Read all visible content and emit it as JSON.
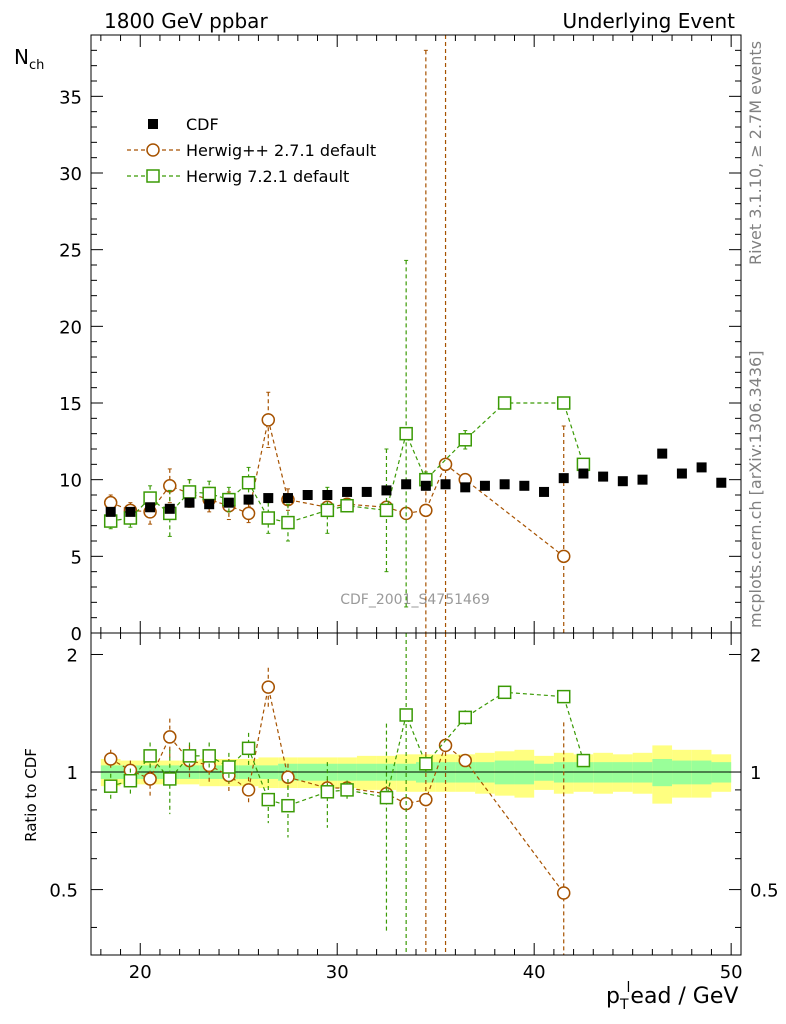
{
  "header": {
    "left_title": "1800 GeV ppbar",
    "right_title": "Underlying Event"
  },
  "side_labels": {
    "rivet": "Rivet 3.1.10, ≥ 2.7M events",
    "mcplots": "mcplots.cern.ch [arXiv:1306.3436]"
  },
  "watermark": "CDF_2001_S4751469",
  "chart_data": {
    "type": "scatter",
    "xlabel_main": "p",
    "xlabel_sub": "T",
    "xlabel_sup": "l",
    "xlabel_rest": "ead / GeV",
    "ylabel_main": "N",
    "ylabel_sub": "ch",
    "ratio_ylabel": "Ratio to CDF",
    "xlim": [
      17.5,
      50.5
    ],
    "ylim": [
      0,
      39
    ],
    "ratio_ylim": [
      0.34,
      2.27
    ],
    "x_ticks": [
      20,
      30,
      40,
      50
    ],
    "y_ticks": [
      0,
      5,
      10,
      15,
      20,
      25,
      30,
      35
    ],
    "ratio_ticks": [
      0.5,
      1,
      2
    ],
    "legend": [
      "CDF",
      "Herwig++ 2.7.1 default",
      "Herwig 7.2.1 default"
    ],
    "colors": {
      "cdf": "#000000",
      "herwigpp": "#a65200",
      "herwig7": "#3a9a05",
      "band_outer": "#ffff80",
      "band_inner": "#99ff99"
    },
    "series": [
      {
        "name": "CDF",
        "x": [
          18.5,
          19.5,
          20.5,
          21.5,
          22.5,
          23.5,
          24.5,
          25.5,
          26.5,
          27.5,
          28.5,
          29.5,
          30.5,
          31.5,
          32.5,
          33.5,
          34.5,
          35.5,
          36.5,
          37.5,
          38.5,
          39.5,
          40.5,
          41.5,
          42.5,
          43.5,
          44.5,
          45.5,
          46.5,
          47.5,
          48.5,
          49.5
        ],
        "y": [
          7.9,
          7.9,
          8.2,
          8.1,
          8.5,
          8.4,
          8.5,
          8.7,
          8.8,
          8.8,
          9.0,
          9.0,
          9.2,
          9.2,
          9.3,
          9.7,
          9.6,
          9.7,
          9.5,
          9.6,
          9.7,
          9.6,
          9.2,
          10.1,
          10.4,
          10.2,
          9.9,
          10.0,
          11.7,
          10.4,
          10.8,
          9.8
        ],
        "ratio_band_outer": [
          0.08,
          0.07,
          0.07,
          0.07,
          0.07,
          0.08,
          0.08,
          0.08,
          0.09,
          0.09,
          0.09,
          0.09,
          0.09,
          0.1,
          0.1,
          0.11,
          0.11,
          0.11,
          0.11,
          0.12,
          0.13,
          0.14,
          0.1,
          0.12,
          0.11,
          0.12,
          0.11,
          0.12,
          0.17,
          0.14,
          0.14,
          0.11
        ],
        "ratio_band_inner": [
          0.04,
          0.04,
          0.04,
          0.04,
          0.04,
          0.04,
          0.04,
          0.04,
          0.04,
          0.05,
          0.05,
          0.05,
          0.05,
          0.05,
          0.05,
          0.05,
          0.06,
          0.06,
          0.06,
          0.06,
          0.07,
          0.07,
          0.05,
          0.06,
          0.06,
          0.06,
          0.06,
          0.06,
          0.08,
          0.07,
          0.07,
          0.06
        ]
      },
      {
        "name": "Herwig++ 2.7.1 default",
        "x": [
          18.5,
          19.5,
          20.5,
          21.5,
          22.5,
          23.5,
          24.5,
          25.5,
          26.5,
          27.5,
          29.5,
          30.5,
          32.5,
          33.5,
          34.5,
          35.5,
          36.5,
          41.5
        ],
        "y": [
          8.5,
          8.0,
          7.9,
          9.6,
          9.1,
          8.7,
          8.3,
          7.8,
          13.9,
          8.7,
          8.2,
          8.4,
          8.2,
          7.8,
          8.0,
          11.0,
          10.0,
          5.0
        ],
        "yerr": [
          0.5,
          0.5,
          0.8,
          1.1,
          0.9,
          0.8,
          0.9,
          0.6,
          1.8,
          0.7,
          0.4,
          0.3,
          0.3,
          0.3,
          30,
          30,
          0.3,
          8.5
        ],
        "ratio": [
          1.08,
          1.01,
          0.96,
          1.23,
          1.07,
          1.04,
          0.98,
          0.9,
          1.65,
          0.97,
          0.91,
          0.91,
          0.88,
          0.83,
          0.85,
          1.17,
          1.07,
          0.49
        ],
        "ratio_err": [
          0.06,
          0.06,
          0.09,
          0.14,
          0.1,
          0.1,
          0.1,
          0.07,
          0.2,
          0.08,
          0.05,
          0.04,
          0.04,
          0.04,
          3,
          3,
          0.04,
          0.85
        ]
      },
      {
        "name": "Herwig 7.2.1 default",
        "x": [
          18.5,
          19.5,
          20.5,
          21.5,
          22.5,
          23.5,
          24.5,
          25.5,
          26.5,
          27.5,
          29.5,
          30.5,
          32.5,
          33.5,
          34.5,
          36.5,
          38.5,
          41.5,
          42.5
        ],
        "y": [
          7.3,
          7.5,
          8.8,
          7.8,
          9.2,
          9.1,
          8.7,
          9.8,
          7.5,
          7.2,
          8.0,
          8.3,
          8.0,
          13.0,
          10.0,
          12.6,
          15.0,
          15.0,
          11.0
        ],
        "yerr": [
          0.5,
          0.6,
          0.8,
          1.5,
          0.8,
          0.8,
          0.8,
          1.0,
          1.0,
          1.2,
          1.5,
          0.4,
          4.0,
          11.3,
          0.5,
          0.6,
          0.2,
          0.2,
          0.3
        ],
        "ratio": [
          0.92,
          0.95,
          1.1,
          0.96,
          1.1,
          1.1,
          1.03,
          1.15,
          0.85,
          0.82,
          0.89,
          0.9,
          0.86,
          1.4,
          1.05,
          1.38,
          1.6,
          1.56,
          1.07
        ],
        "ratio_err": [
          0.07,
          0.07,
          0.09,
          0.18,
          0.09,
          0.09,
          0.09,
          0.11,
          0.11,
          0.14,
          0.17,
          0.05,
          0.47,
          3,
          0.05,
          0.06,
          0.03,
          0.03,
          0.03
        ]
      }
    ]
  }
}
